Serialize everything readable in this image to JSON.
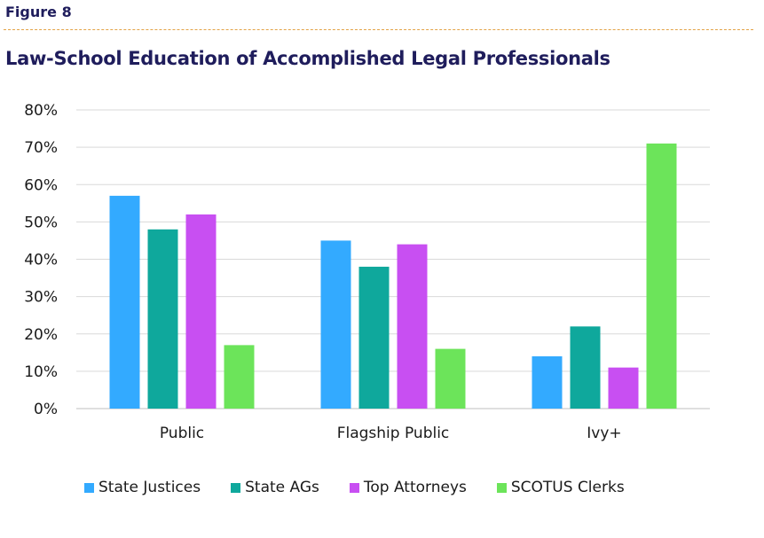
{
  "header": {
    "figure_label": "Figure 8",
    "title": "Law-School Education of Accomplished Legal Professionals"
  },
  "chart_data": {
    "type": "bar",
    "title": "Law-School Education of Accomplished Legal Professionals",
    "xlabel": "",
    "ylabel": "",
    "categories": [
      "Public",
      "Flagship Public",
      "Ivy+"
    ],
    "series": [
      {
        "name": "State Justices",
        "color": "#33aaff",
        "values": [
          57,
          45,
          14
        ]
      },
      {
        "name": "State AGs",
        "color": "#0fa89c",
        "values": [
          48,
          38,
          22
        ]
      },
      {
        "name": "Top Attorneys",
        "color": "#c84ff2",
        "values": [
          52,
          44,
          11
        ]
      },
      {
        "name": "SCOTUS Clerks",
        "color": "#6ce45a",
        "values": [
          17,
          16,
          71
        ]
      }
    ],
    "ylim": [
      0,
      80
    ],
    "yticks": [
      0,
      10,
      20,
      30,
      40,
      50,
      60,
      70,
      80
    ],
    "ytick_labels": [
      "0%",
      "10%",
      "20%",
      "30%",
      "40%",
      "50%",
      "60%",
      "70%",
      "80%"
    ],
    "grid": true,
    "legend_position": "bottom"
  },
  "colors": {
    "title": "#1f1d5c",
    "divider": "#e3a347",
    "gridline": "#d9d9d9"
  }
}
